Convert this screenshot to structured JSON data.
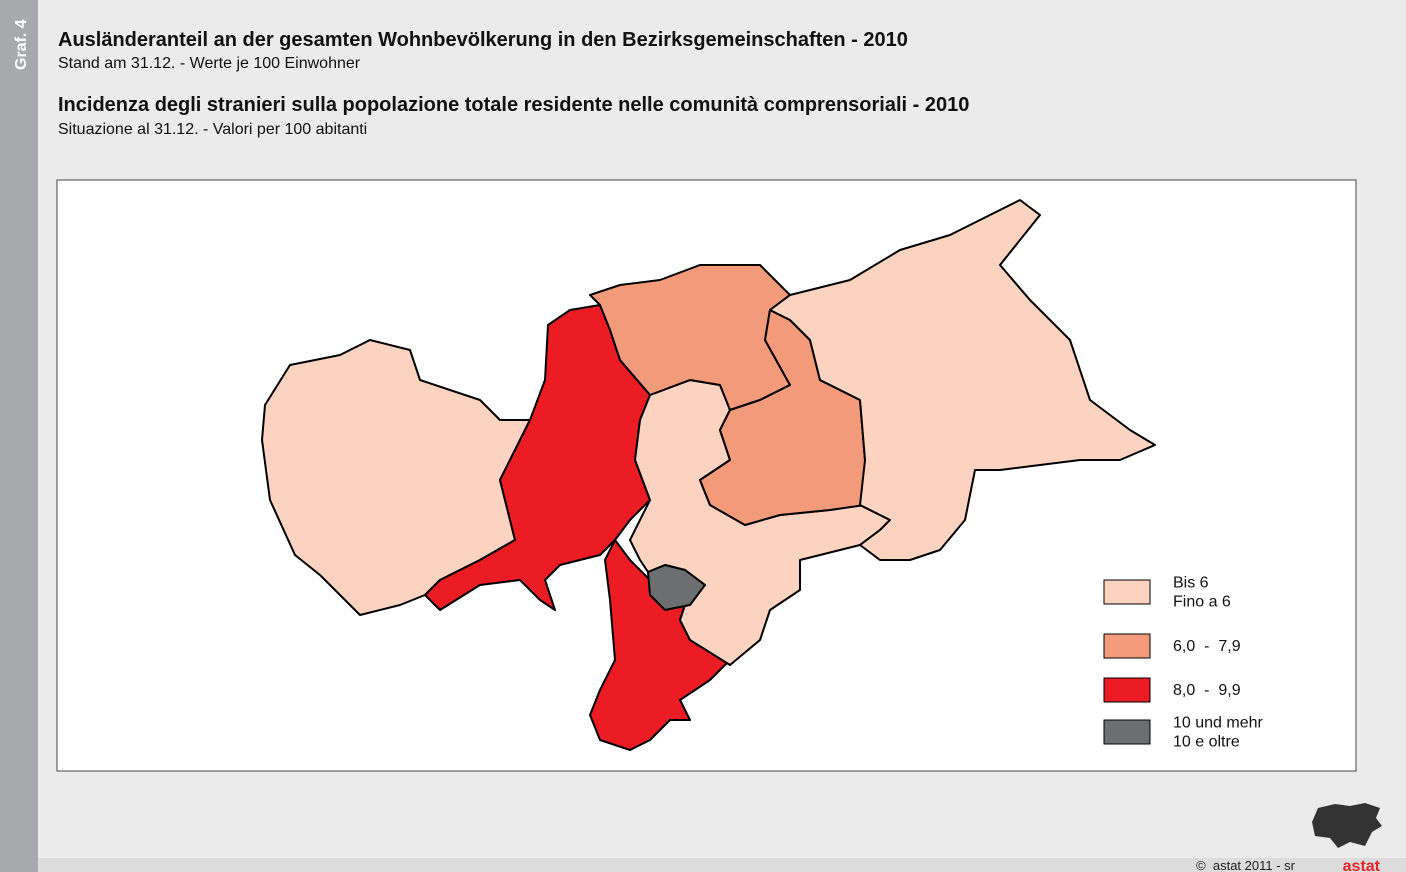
{
  "side_label": "Graf. 4",
  "header": {
    "title_de": "Ausländeranteil an der gesamten Wohnbevölkerung in den Bezirksgemeinschaften - 2010",
    "subtitle_de": "Stand am 31.12. - Werte je 100 Einwohner",
    "title_it": "Incidenza degli stranieri sulla popolazione totale residente nelle comunità comprensoriali - 2010",
    "subtitle_it": "Situazione al 31.12. - Valori per 100 abitanti"
  },
  "legend": [
    {
      "label": [
        "Bis 6",
        "Fino a 6"
      ],
      "color": "#fbd3c0"
    },
    {
      "label": [
        "6,0  -  7,9"
      ],
      "color": "#f39a7b"
    },
    {
      "label": [
        "8,0  -  9,9"
      ],
      "color": "#ec1c24"
    },
    {
      "label": [
        "10 und mehr",
        "10 e oltre"
      ],
      "color": "#6d6e70"
    }
  ],
  "footer": {
    "credit": "©  astat 2011 - sr",
    "logo": "astat"
  }
}
